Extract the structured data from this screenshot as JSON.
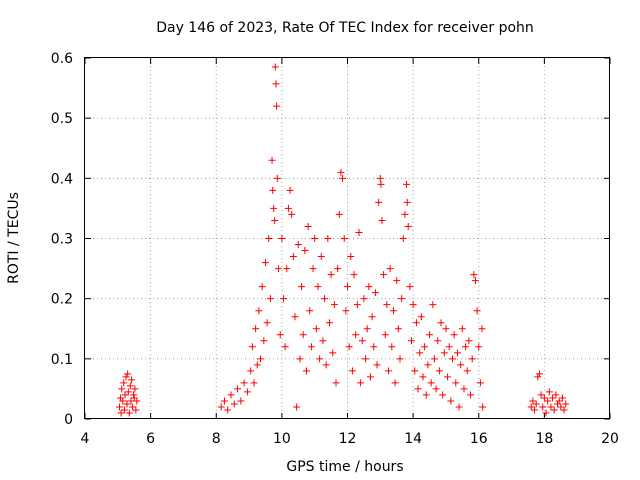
{
  "chart_data": {
    "type": "scatter",
    "title": "Day 146 of 2023, Rate Of TEC Index for receiver pohn",
    "xlabel": "GPS time / hours",
    "ylabel": "ROTI / TECUs",
    "xlim": [
      4,
      20
    ],
    "ylim": [
      0,
      0.6
    ],
    "xticks": [
      "4",
      "6",
      "8",
      "10",
      "12",
      "14",
      "16",
      "18",
      "20"
    ],
    "yticks": [
      "0",
      "0.1",
      "0.2",
      "0.3",
      "0.4",
      "0.5",
      "0.6"
    ],
    "grid": true,
    "marker": "plus",
    "color": "#ff0000",
    "series": [
      {
        "name": "ROTI",
        "points": [
          [
            5.05,
            0.02
          ],
          [
            5.08,
            0.035
          ],
          [
            5.1,
            0.01
          ],
          [
            5.12,
            0.05
          ],
          [
            5.15,
            0.03
          ],
          [
            5.18,
            0.06
          ],
          [
            5.2,
            0.015
          ],
          [
            5.22,
            0.04
          ],
          [
            5.25,
            0.07
          ],
          [
            5.28,
            0.025
          ],
          [
            5.3,
            0.075
          ],
          [
            5.32,
            0.045
          ],
          [
            5.35,
            0.01
          ],
          [
            5.38,
            0.055
          ],
          [
            5.4,
            0.03
          ],
          [
            5.42,
            0.065
          ],
          [
            5.45,
            0.02
          ],
          [
            5.48,
            0.04
          ],
          [
            5.5,
            0.035
          ],
          [
            5.52,
            0.05
          ],
          [
            5.55,
            0.015
          ],
          [
            5.58,
            0.03
          ],
          [
            8.15,
            0.02
          ],
          [
            8.25,
            0.03
          ],
          [
            8.35,
            0.015
          ],
          [
            8.45,
            0.04
          ],
          [
            8.55,
            0.025
          ],
          [
            8.65,
            0.05
          ],
          [
            8.75,
            0.03
          ],
          [
            8.85,
            0.06
          ],
          [
            8.95,
            0.045
          ],
          [
            9.05,
            0.08
          ],
          [
            9.1,
            0.12
          ],
          [
            9.15,
            0.06
          ],
          [
            9.2,
            0.15
          ],
          [
            9.25,
            0.09
          ],
          [
            9.3,
            0.18
          ],
          [
            9.35,
            0.1
          ],
          [
            9.4,
            0.22
          ],
          [
            9.45,
            0.13
          ],
          [
            9.5,
            0.26
          ],
          [
            9.55,
            0.16
          ],
          [
            9.6,
            0.3
          ],
          [
            9.65,
            0.2
          ],
          [
            9.7,
            0.43
          ],
          [
            9.72,
            0.38
          ],
          [
            9.75,
            0.35
          ],
          [
            9.78,
            0.33
          ],
          [
            9.8,
            0.585
          ],
          [
            9.82,
            0.557
          ],
          [
            9.84,
            0.52
          ],
          [
            9.86,
            0.4
          ],
          [
            9.9,
            0.25
          ],
          [
            9.95,
            0.14
          ],
          [
            10.0,
            0.3
          ],
          [
            10.05,
            0.2
          ],
          [
            10.1,
            0.12
          ],
          [
            10.15,
            0.25
          ],
          [
            10.2,
            0.35
          ],
          [
            10.25,
            0.38
          ],
          [
            10.3,
            0.34
          ],
          [
            10.35,
            0.27
          ],
          [
            10.4,
            0.17
          ],
          [
            10.45,
            0.02
          ],
          [
            10.5,
            0.29
          ],
          [
            10.55,
            0.1
          ],
          [
            10.6,
            0.22
          ],
          [
            10.65,
            0.14
          ],
          [
            10.7,
            0.28
          ],
          [
            10.75,
            0.08
          ],
          [
            10.8,
            0.32
          ],
          [
            10.85,
            0.18
          ],
          [
            10.9,
            0.12
          ],
          [
            10.95,
            0.25
          ],
          [
            11.0,
            0.3
          ],
          [
            11.05,
            0.15
          ],
          [
            11.1,
            0.22
          ],
          [
            11.15,
            0.1
          ],
          [
            11.2,
            0.27
          ],
          [
            11.25,
            0.13
          ],
          [
            11.3,
            0.2
          ],
          [
            11.35,
            0.09
          ],
          [
            11.4,
            0.3
          ],
          [
            11.45,
            0.16
          ],
          [
            11.5,
            0.24
          ],
          [
            11.55,
            0.11
          ],
          [
            11.6,
            0.19
          ],
          [
            11.65,
            0.06
          ],
          [
            11.7,
            0.25
          ],
          [
            11.75,
            0.34
          ],
          [
            11.8,
            0.41
          ],
          [
            11.85,
            0.4
          ],
          [
            11.9,
            0.3
          ],
          [
            11.95,
            0.18
          ],
          [
            12.0,
            0.22
          ],
          [
            12.05,
            0.12
          ],
          [
            12.1,
            0.27
          ],
          [
            12.15,
            0.08
          ],
          [
            12.2,
            0.24
          ],
          [
            12.25,
            0.14
          ],
          [
            12.3,
            0.19
          ],
          [
            12.35,
            0.31
          ],
          [
            12.4,
            0.06
          ],
          [
            12.45,
            0.13
          ],
          [
            12.5,
            0.2
          ],
          [
            12.55,
            0.1
          ],
          [
            12.6,
            0.15
          ],
          [
            12.65,
            0.22
          ],
          [
            12.7,
            0.07
          ],
          [
            12.75,
            0.17
          ],
          [
            12.8,
            0.12
          ],
          [
            12.85,
            0.21
          ],
          [
            12.9,
            0.09
          ],
          [
            12.95,
            0.36
          ],
          [
            13.0,
            0.4
          ],
          [
            13.02,
            0.39
          ],
          [
            13.05,
            0.33
          ],
          [
            13.1,
            0.24
          ],
          [
            13.15,
            0.14
          ],
          [
            13.2,
            0.19
          ],
          [
            13.25,
            0.08
          ],
          [
            13.3,
            0.25
          ],
          [
            13.35,
            0.12
          ],
          [
            13.4,
            0.18
          ],
          [
            13.45,
            0.06
          ],
          [
            13.5,
            0.23
          ],
          [
            13.55,
            0.15
          ],
          [
            13.6,
            0.1
          ],
          [
            13.65,
            0.2
          ],
          [
            13.7,
            0.3
          ],
          [
            13.75,
            0.34
          ],
          [
            13.8,
            0.39
          ],
          [
            13.82,
            0.36
          ],
          [
            13.85,
            0.32
          ],
          [
            13.9,
            0.22
          ],
          [
            13.95,
            0.13
          ],
          [
            14.0,
            0.19
          ],
          [
            14.05,
            0.08
          ],
          [
            14.1,
            0.16
          ],
          [
            14.15,
            0.05
          ],
          [
            14.2,
            0.11
          ],
          [
            14.25,
            0.17
          ],
          [
            14.3,
            0.07
          ],
          [
            14.35,
            0.12
          ],
          [
            14.4,
            0.04
          ],
          [
            14.45,
            0.09
          ],
          [
            14.5,
            0.14
          ],
          [
            14.55,
            0.06
          ],
          [
            14.6,
            0.19
          ],
          [
            14.65,
            0.1
          ],
          [
            14.7,
            0.05
          ],
          [
            14.75,
            0.13
          ],
          [
            14.8,
            0.08
          ],
          [
            14.85,
            0.16
          ],
          [
            14.9,
            0.04
          ],
          [
            14.95,
            0.11
          ],
          [
            15.0,
            0.15
          ],
          [
            15.05,
            0.07
          ],
          [
            15.1,
            0.12
          ],
          [
            15.15,
            0.03
          ],
          [
            15.2,
            0.1
          ],
          [
            15.25,
            0.14
          ],
          [
            15.3,
            0.06
          ],
          [
            15.35,
            0.11
          ],
          [
            15.4,
            0.02
          ],
          [
            15.45,
            0.09
          ],
          [
            15.5,
            0.15
          ],
          [
            15.55,
            0.05
          ],
          [
            15.6,
            0.12
          ],
          [
            15.65,
            0.08
          ],
          [
            15.7,
            0.13
          ],
          [
            15.75,
            0.04
          ],
          [
            15.8,
            0.1
          ],
          [
            15.85,
            0.24
          ],
          [
            15.9,
            0.23
          ],
          [
            15.95,
            0.18
          ],
          [
            16.0,
            0.12
          ],
          [
            16.05,
            0.06
          ],
          [
            16.1,
            0.15
          ],
          [
            16.12,
            0.02
          ],
          [
            17.6,
            0.02
          ],
          [
            17.65,
            0.03
          ],
          [
            17.7,
            0.015
          ],
          [
            17.75,
            0.025
          ],
          [
            17.8,
            0.07
          ],
          [
            17.85,
            0.075
          ],
          [
            17.9,
            0.04
          ],
          [
            17.95,
            0.02
          ],
          [
            18.0,
            0.035
          ],
          [
            18.05,
            0.01
          ],
          [
            18.1,
            0.03
          ],
          [
            18.15,
            0.045
          ],
          [
            18.2,
            0.02
          ],
          [
            18.25,
            0.035
          ],
          [
            18.3,
            0.015
          ],
          [
            18.35,
            0.04
          ],
          [
            18.4,
            0.025
          ],
          [
            18.45,
            0.03
          ],
          [
            18.5,
            0.02
          ],
          [
            18.55,
            0.035
          ],
          [
            18.6,
            0.015
          ],
          [
            18.65,
            0.025
          ]
        ]
      }
    ]
  }
}
